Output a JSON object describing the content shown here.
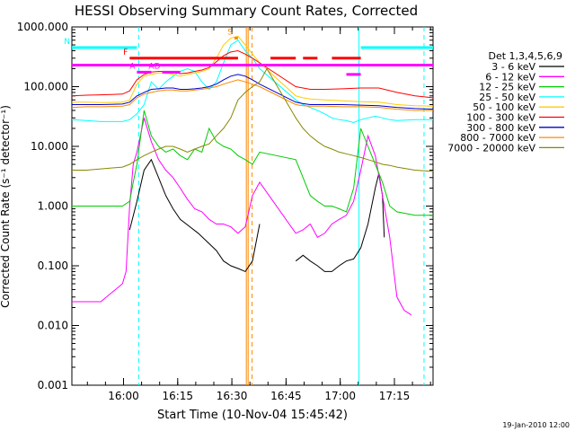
{
  "chart_data": {
    "type": "line",
    "title": "HESSI Observing Summary Count Rates, Corrected",
    "xlabel": "Start Time (10-Nov-04 15:45:42)",
    "ylabel": "Corrected Count Rate (s⁻¹ detector⁻¹)",
    "yscale": "log",
    "ylim": [
      0.001,
      1000
    ],
    "xlim_minutes_after_15_45_42": [
      0,
      100
    ],
    "xtick_labels": [
      "16:00",
      "16:15",
      "16:30",
      "16:45",
      "17:00",
      "17:15"
    ],
    "ytick_labels": [
      "0.001",
      "0.010",
      "0.100",
      "1.000",
      "10.000",
      "100.000",
      "1000.000"
    ],
    "legend_title": "Det 1,3,4,5,6,9",
    "legend_position": "right",
    "grid": false,
    "series": [
      {
        "name": "3 - 6 keV",
        "color": "#000000",
        "x": [
          0,
          4,
          8,
          15,
          16,
          18,
          20,
          22,
          24,
          26,
          28,
          30,
          35,
          40,
          42,
          44,
          46,
          48,
          50,
          52,
          54,
          56,
          60,
          61,
          62,
          64,
          66,
          68,
          70,
          72,
          74,
          76,
          78,
          80,
          82,
          84,
          85,
          86,
          86.5
        ],
        "y": [
          null,
          null,
          null,
          null,
          0.4,
          1.2,
          4,
          6,
          3,
          1.5,
          0.9,
          0.6,
          0.35,
          0.18,
          0.12,
          0.1,
          0.09,
          0.08,
          0.12,
          0.5,
          null,
          null,
          null,
          null,
          0.12,
          0.15,
          0.12,
          0.1,
          0.08,
          0.08,
          0.1,
          0.12,
          0.13,
          0.2,
          0.5,
          2,
          3.5,
          1.5,
          0.3
        ]
      },
      {
        "name": "6 - 12 keV",
        "color": "#ff00ff",
        "x": [
          0,
          2,
          4,
          8,
          14,
          15,
          16,
          17,
          18,
          20,
          22,
          24,
          26,
          28,
          30,
          32,
          34,
          36,
          38,
          40,
          42,
          44,
          46,
          48,
          50,
          52,
          62,
          64,
          66,
          68,
          70,
          72,
          74,
          76,
          78,
          80,
          82,
          84,
          86,
          88,
          90,
          92,
          94
        ],
        "y": [
          0.025,
          0.025,
          0.025,
          0.025,
          0.05,
          0.08,
          1,
          5,
          8,
          30,
          12,
          6,
          4,
          3,
          2,
          1.3,
          0.9,
          0.8,
          0.6,
          0.5,
          0.5,
          0.45,
          0.35,
          0.45,
          1.5,
          2.5,
          0.35,
          0.4,
          0.5,
          0.3,
          0.35,
          0.5,
          0.6,
          0.7,
          1.2,
          4,
          15,
          7,
          1.5,
          0.3,
          0.03,
          0.018,
          0.015
        ]
      },
      {
        "name": "12 - 25 keV",
        "color": "#00cc00",
        "x": [
          0,
          4,
          8,
          14,
          16,
          17,
          18,
          20,
          22,
          24,
          26,
          28,
          30,
          32,
          34,
          36,
          38,
          40,
          42,
          44,
          46,
          48,
          50,
          52,
          62,
          64,
          66,
          68,
          70,
          72,
          74,
          76,
          78,
          80,
          82,
          84,
          86,
          88,
          90,
          95,
          100
        ],
        "y": [
          1,
          1,
          1,
          1,
          1.2,
          2.5,
          5,
          40,
          15,
          10,
          8,
          9,
          7,
          6,
          9,
          8,
          20,
          12,
          10,
          9,
          7,
          6,
          5,
          8,
          6,
          3,
          1.5,
          1.2,
          1,
          1,
          0.9,
          0.8,
          2,
          20,
          10,
          5,
          2.5,
          1,
          0.8,
          0.7,
          0.7
        ]
      },
      {
        "name": "25 - 50 keV",
        "color": "#00ffff",
        "x": [
          0,
          4,
          8,
          14,
          16,
          18,
          20,
          22,
          24,
          26,
          28,
          30,
          32,
          34,
          36,
          38,
          40,
          42,
          44,
          46,
          48,
          50,
          52,
          62,
          64,
          66,
          68,
          70,
          72,
          74,
          76,
          78,
          80,
          82,
          84,
          86,
          88,
          90,
          95,
          100
        ],
        "y": [
          28,
          27,
          26,
          26,
          28,
          35,
          50,
          120,
          90,
          120,
          150,
          180,
          200,
          180,
          120,
          90,
          120,
          250,
          500,
          600,
          400,
          300,
          200,
          60,
          50,
          45,
          40,
          35,
          30,
          28,
          27,
          25,
          28,
          30,
          32,
          30,
          28,
          27,
          28,
          28
        ]
      },
      {
        "name": "50 - 100 keV",
        "color": "#ffcc00",
        "x": [
          0,
          4,
          8,
          14,
          16,
          18,
          20,
          22,
          24,
          26,
          28,
          30,
          32,
          34,
          36,
          38,
          40,
          42,
          44,
          46,
          48,
          50,
          52,
          62,
          64,
          66,
          70,
          75,
          80,
          85,
          90,
          95,
          100
        ],
        "y": [
          55,
          55,
          54,
          55,
          60,
          110,
          150,
          160,
          170,
          170,
          160,
          150,
          160,
          170,
          180,
          200,
          300,
          500,
          650,
          700,
          500,
          350,
          250,
          70,
          65,
          62,
          60,
          58,
          56,
          55,
          50,
          48,
          47
        ]
      },
      {
        "name": "100 - 300 keV",
        "color": "#ff0000",
        "x": [
          0,
          4,
          8,
          14,
          16,
          18,
          20,
          22,
          24,
          26,
          28,
          30,
          32,
          34,
          36,
          38,
          40,
          42,
          44,
          46,
          48,
          50,
          52,
          62,
          64,
          66,
          70,
          75,
          80,
          85,
          90,
          95,
          100
        ],
        "y": [
          70,
          72,
          73,
          75,
          85,
          130,
          160,
          175,
          180,
          180,
          175,
          165,
          170,
          180,
          190,
          210,
          260,
          330,
          380,
          400,
          350,
          300,
          250,
          100,
          95,
          90,
          90,
          92,
          95,
          95,
          80,
          70,
          65
        ]
      },
      {
        "name": "300 - 800 keV",
        "color": "#0000cc",
        "x": [
          0,
          4,
          8,
          14,
          16,
          18,
          20,
          22,
          24,
          26,
          28,
          30,
          32,
          34,
          36,
          38,
          40,
          42,
          44,
          46,
          48,
          50,
          52,
          62,
          64,
          66,
          70,
          75,
          80,
          85,
          90,
          95,
          100
        ],
        "y": [
          50,
          50,
          50,
          51,
          55,
          70,
          80,
          90,
          92,
          95,
          95,
          90,
          90,
          92,
          95,
          100,
          110,
          130,
          150,
          160,
          150,
          130,
          110,
          55,
          52,
          50,
          50,
          50,
          49,
          48,
          45,
          43,
          42
        ]
      },
      {
        "name": "800 - 7000 keV",
        "color": "#ff8800",
        "x": [
          0,
          4,
          8,
          14,
          16,
          18,
          20,
          22,
          24,
          26,
          28,
          30,
          32,
          34,
          36,
          38,
          40,
          42,
          44,
          46,
          48,
          50,
          52,
          62,
          64,
          66,
          70,
          75,
          80,
          85,
          90,
          95,
          100
        ],
        "y": [
          45,
          46,
          46,
          47,
          50,
          65,
          75,
          80,
          85,
          88,
          88,
          85,
          85,
          88,
          90,
          95,
          100,
          110,
          120,
          130,
          120,
          110,
          100,
          50,
          48,
          47,
          47,
          46,
          46,
          45,
          42,
          40,
          40
        ]
      },
      {
        "name": "7000 - 20000 keV",
        "color": "#888800",
        "x": [
          0,
          4,
          8,
          14,
          16,
          18,
          20,
          22,
          24,
          26,
          28,
          30,
          32,
          34,
          36,
          38,
          40,
          42,
          44,
          46,
          48,
          50,
          52,
          54,
          62,
          64,
          66,
          68,
          70,
          72,
          74,
          76,
          78,
          80,
          82,
          84,
          86,
          88,
          90,
          95,
          100
        ],
        "y": [
          4,
          4,
          4.2,
          4.5,
          5,
          6,
          7,
          8,
          9,
          10,
          10,
          9,
          8,
          9,
          10,
          11,
          15,
          20,
          30,
          60,
          80,
          100,
          120,
          200,
          30,
          20,
          15,
          12,
          10,
          9,
          8,
          7.5,
          7,
          6.5,
          6,
          5.5,
          5,
          4.8,
          4.5,
          4,
          3.8
        ]
      }
    ],
    "attenuator_bars": [
      {
        "label": "N",
        "color": "#00ffff",
        "y": 450,
        "x_spans": [
          [
            0,
            18
          ],
          [
            80,
            100
          ]
        ]
      },
      {
        "label": "F",
        "color": "#ff0000",
        "y": 300,
        "x_spans": [
          [
            16,
            46
          ],
          [
            55,
            62
          ],
          [
            64,
            68
          ],
          [
            72,
            80
          ]
        ]
      },
      {
        "label": "",
        "color": "#ff00ff",
        "y": 230,
        "x_spans": [
          [
            0,
            100
          ]
        ]
      },
      {
        "label": "AD",
        "color": "#ff00ff",
        "y": 175,
        "x_spans": [
          [
            25,
            30
          ]
        ]
      },
      {
        "label": "A",
        "color": "#ff00ff",
        "y": 175,
        "x_spans": [
          [
            18,
            22
          ]
        ]
      },
      {
        "label": "S",
        "color": "#ff8800",
        "y": 650,
        "x_spans": [
          [
            45,
            46
          ]
        ]
      },
      {
        "label": "",
        "color": "#ff00ff",
        "y": 160,
        "x_spans": [
          [
            76,
            80
          ]
        ]
      }
    ],
    "vertical_markers": [
      {
        "x": 18.5,
        "color": "#00ffff",
        "style": "dashed"
      },
      {
        "x": 48.3,
        "color": "#ff8800",
        "style": "solid"
      },
      {
        "x": 48.8,
        "color": "#ff8800",
        "style": "solid"
      },
      {
        "x": 49.9,
        "color": "#ff8800",
        "style": "dashed"
      },
      {
        "x": 79.5,
        "color": "#00ffff",
        "style": "solid"
      },
      {
        "x": 97.5,
        "color": "#00ffff",
        "style": "dashed"
      }
    ],
    "footer_date": "19-Jan-2010 12:00"
  }
}
